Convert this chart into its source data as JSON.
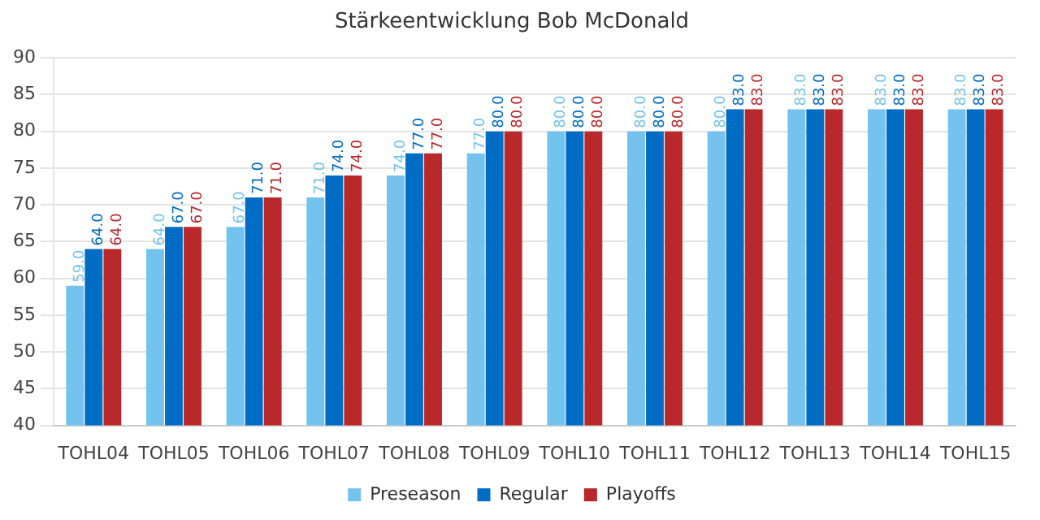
{
  "chart_data": {
    "type": "bar",
    "title": "Stärkeentwicklung Bob McDonald",
    "categories": [
      "TOHL04",
      "TOHL05",
      "TOHL06",
      "TOHL07",
      "TOHL08",
      "TOHL09",
      "TOHL10",
      "TOHL11",
      "TOHL12",
      "TOHL13",
      "TOHL14",
      "TOHL15"
    ],
    "series": [
      {
        "name": "Preseason",
        "color": "#74c3ee",
        "values": [
          59,
          64,
          67,
          71,
          74,
          77,
          80,
          80,
          80,
          83,
          83,
          83
        ],
        "value_labels": [
          "59.0",
          "64.0",
          "67.0",
          "71.0",
          "74.0",
          "77.0",
          "80.0",
          "80.0",
          "80.0",
          "83.0",
          "83.0",
          "83.0"
        ]
      },
      {
        "name": "Regular",
        "color": "#006cc4",
        "values": [
          64,
          67,
          71,
          74,
          77,
          80,
          80,
          80,
          83,
          83,
          83,
          83
        ],
        "value_labels": [
          "64.0",
          "67.0",
          "71.0",
          "74.0",
          "77.0",
          "80.0",
          "80.0",
          "80.0",
          "83.0",
          "83.0",
          "83.0",
          "83.0"
        ]
      },
      {
        "name": "Playoffs",
        "color": "#b9282b",
        "values": [
          64,
          67,
          71,
          74,
          77,
          80,
          80,
          80,
          83,
          83,
          83,
          83
        ],
        "value_labels": [
          "64.0",
          "67.0",
          "71.0",
          "74.0",
          "77.0",
          "80.0",
          "80.0",
          "80.0",
          "83.0",
          "83.0",
          "83.0",
          "83.0"
        ]
      }
    ],
    "ylim": [
      40,
      90
    ],
    "yticks": [
      40,
      45,
      50,
      55,
      60,
      65,
      70,
      75,
      80,
      85,
      90
    ],
    "grid": "y",
    "legend": "bottom"
  }
}
